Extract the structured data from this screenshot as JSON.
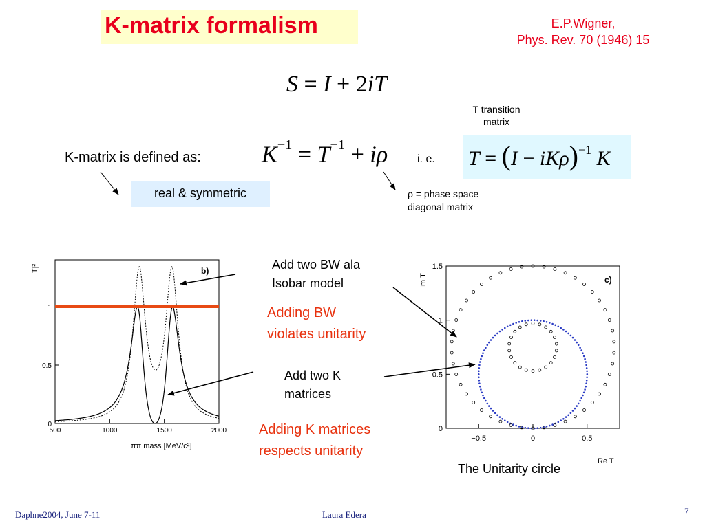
{
  "slide": {
    "title": "K-matrix formalism",
    "reference": {
      "line1": "E.P.Wigner,",
      "line2": "Phys. Rev. 70 (1946) 15"
    },
    "equation_s": "S = I + 2iT",
    "t_note": {
      "line1": "T transition",
      "line2": "matrix"
    },
    "kmatrix_label": "K-matrix is defined as:",
    "ie_label": "i. e.",
    "real_symmetric": "real & symmetric",
    "rho_note": {
      "line1": "ρ = phase space",
      "line2": "diagonal matrix"
    }
  },
  "annotations": {
    "add_bw": {
      "line1": "Add two BW ala",
      "line2": "Isobar model"
    },
    "adding_bw": {
      "line1": "Adding BW",
      "line2": "violates unitarity"
    },
    "add_k": {
      "line1": "Add two K",
      "line2": "matrices"
    },
    "adding_k": {
      "line1": "Adding K matrices",
      "line2": "respects unitarity"
    },
    "unitarity_caption": "The Unitarity circle"
  },
  "footer": {
    "left": "Daphne2004, June 7-11",
    "center": "Laura Edera",
    "page": "7"
  },
  "colors": {
    "title": "#e8001c",
    "annotation_red": "#e8320f",
    "unitarity_line": "#e84a14",
    "circle_blue": "#2b3cc4",
    "footer": "#1a237e"
  },
  "chart_data": [
    {
      "type": "line",
      "panel": "b)",
      "ylabel": "|T|²",
      "xlabel": "ππ mass [MeV/c²]",
      "xlim": [
        500,
        2000
      ],
      "ylim": [
        0,
        1.4
      ],
      "x_ticks": [
        "500",
        "1000",
        "1500",
        "2000"
      ],
      "y_ticks": [
        "0",
        "0.5",
        "1"
      ],
      "unitarity_limit": 1,
      "series": [
        {
          "style": "dashed",
          "description": "two BW (isobar)",
          "peaks_x": [
            1270,
            1570
          ],
          "peak_y": 1.28
        },
        {
          "style": "solid",
          "description": "two K matrices",
          "peaks_x": [
            1270,
            1560
          ],
          "peak_y": 1.0,
          "dip_x": 1420,
          "dip_y": 0.0
        }
      ]
    },
    {
      "type": "scatter",
      "panel": "c)",
      "xlabel": "Re T",
      "ylabel": "Im T",
      "xlim": [
        -0.8,
        0.8
      ],
      "ylim": [
        0,
        1.5
      ],
      "x_ticks": [
        "−0.5",
        "0",
        "0.5"
      ],
      "y_ticks": [
        "0",
        "0.5",
        "1",
        "1.5"
      ],
      "series": [
        {
          "name": "",
          "description": "two K matrices lie on the unitarity circle",
          "center": [
            0,
            0.5
          ],
          "radius": 0.5
        },
        {
          "name": "",
          "description": "two BW leave the unitarity circle"
        }
      ]
    }
  ]
}
